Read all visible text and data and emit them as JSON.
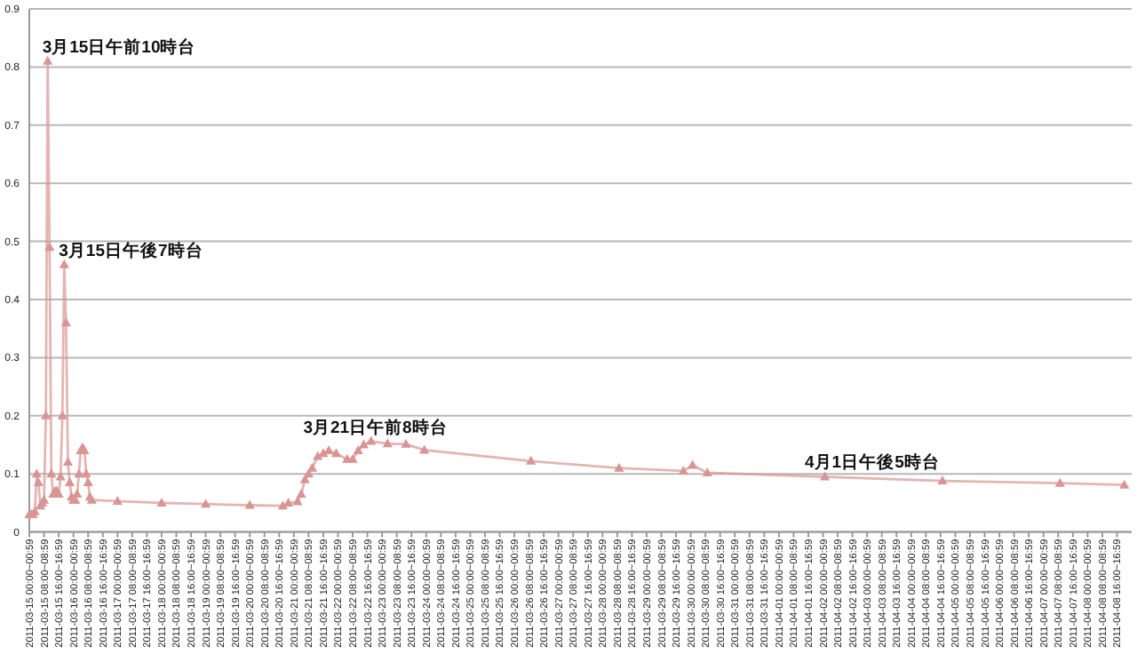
{
  "chart_data": {
    "type": "line",
    "marker": "triangle",
    "line_style": "solid",
    "grid": "y",
    "ylim": [
      0,
      0.9
    ],
    "yticks": [
      0,
      0.1,
      0.2,
      0.3,
      0.4,
      0.5,
      0.6,
      0.7,
      0.8,
      0.9
    ],
    "xlim": [
      "2011-03-15T00:00",
      "2011-04-09T00:00"
    ],
    "xticks": [
      {
        "value": "2011-03-15T00:00",
        "label": "2011-03-15 00:00~00:59"
      },
      {
        "value": "2011-03-15T08:00",
        "label": "2011-03-15 08:00~08:59"
      },
      {
        "value": "2011-03-15T16:00",
        "label": "2011-03-15 16:00~16:59"
      },
      {
        "value": "2011-03-16T00:00",
        "label": "2011-03-16 00:00~00:59"
      },
      {
        "value": "2011-03-16T08:00",
        "label": "2011-03-16 08:00~08:59"
      },
      {
        "value": "2011-03-16T16:00",
        "label": "2011-03-16 16:00~16:59"
      },
      {
        "value": "2011-03-17T00:00",
        "label": "2011-03-17 00:00~00:59"
      },
      {
        "value": "2011-03-17T08:00",
        "label": "2011-03-17 08:00~08:59"
      },
      {
        "value": "2011-03-17T16:00",
        "label": "2011-03-17 16:00~16:59"
      },
      {
        "value": "2011-03-18T00:00",
        "label": "2011-03-18 00:00~00:59"
      },
      {
        "value": "2011-03-18T08:00",
        "label": "2011-03-18 08:00~08:59"
      },
      {
        "value": "2011-03-18T16:00",
        "label": "2011-03-18 16:00~16:59"
      },
      {
        "value": "2011-03-19T00:00",
        "label": "2011-03-19 00:00~00:59"
      },
      {
        "value": "2011-03-19T08:00",
        "label": "2011-03-19 08:00~08:59"
      },
      {
        "value": "2011-03-19T16:00",
        "label": "2011-03-19 16:00~16:59"
      },
      {
        "value": "2011-03-20T00:00",
        "label": "2011-03-20 00:00~00:59"
      },
      {
        "value": "2011-03-20T08:00",
        "label": "2011-03-20 08:00~08:59"
      },
      {
        "value": "2011-03-20T16:00",
        "label": "2011-03-20 16:00~16:59"
      },
      {
        "value": "2011-03-21T00:00",
        "label": "2011-03-21 00:00~00:59"
      },
      {
        "value": "2011-03-21T08:00",
        "label": "2011-03-21 08:00~08:59"
      },
      {
        "value": "2011-03-21T16:00",
        "label": "2011-03-21 16:00~16:59"
      },
      {
        "value": "2011-03-22T00:00",
        "label": "2011-03-22 00:00~00:59"
      },
      {
        "value": "2011-03-22T08:00",
        "label": "2011-03-22 08:00~08:59"
      },
      {
        "value": "2011-03-22T16:00",
        "label": "2011-03-22 16:00~16:59"
      },
      {
        "value": "2011-03-23T00:00",
        "label": "2011-03-23 00:00~00:59"
      },
      {
        "value": "2011-03-23T08:00",
        "label": "2011-03-23 08:00~08:59"
      },
      {
        "value": "2011-03-23T16:00",
        "label": "2011-03-23 16:00~16:59"
      },
      {
        "value": "2011-03-24T00:00",
        "label": "2011-03-24 00:00~00:59"
      },
      {
        "value": "2011-03-24T08:00",
        "label": "2011-03-24 08:00~08:59"
      },
      {
        "value": "2011-03-24T16:00",
        "label": "2011-03-24 16:00~16:59"
      },
      {
        "value": "2011-03-25T00:00",
        "label": "2011-03-25 00:00~00:59"
      },
      {
        "value": "2011-03-25T08:00",
        "label": "2011-03-25 08:00~08:59"
      },
      {
        "value": "2011-03-25T16:00",
        "label": "2011-03-25 16:00~16:59"
      },
      {
        "value": "2011-03-26T00:00",
        "label": "2011-03-26 00:00~00:59"
      },
      {
        "value": "2011-03-26T08:00",
        "label": "2011-03-26 08:00~08:59"
      },
      {
        "value": "2011-03-26T16:00",
        "label": "2011-03-26 16:00~16:59"
      },
      {
        "value": "2011-03-27T00:00",
        "label": "2011-03-27 00:00~00:59"
      },
      {
        "value": "2011-03-27T08:00",
        "label": "2011-03-27 08:00~08:59"
      },
      {
        "value": "2011-03-27T16:00",
        "label": "2011-03-27 16:00~16:59"
      },
      {
        "value": "2011-03-28T00:00",
        "label": "2011-03-28 00:00~00:59"
      },
      {
        "value": "2011-03-28T08:00",
        "label": "2011-03-28 08:00~08:59"
      },
      {
        "value": "2011-03-28T16:00",
        "label": "2011-03-28 16:00~16:59"
      },
      {
        "value": "2011-03-29T00:00",
        "label": "2011-03-29 00:00~00:59"
      },
      {
        "value": "2011-03-29T08:00",
        "label": "2011-03-29 08:00~08:59"
      },
      {
        "value": "2011-03-29T16:00",
        "label": "2011-03-29 16:00~16:59"
      },
      {
        "value": "2011-03-30T00:00",
        "label": "2011-03-30 00:00~00:59"
      },
      {
        "value": "2011-03-30T08:00",
        "label": "2011-03-30 08:00~08:59"
      },
      {
        "value": "2011-03-30T16:00",
        "label": "2011-03-30 16:00~16:59"
      },
      {
        "value": "2011-03-31T00:00",
        "label": "2011-03-31 00:00~00:59"
      },
      {
        "value": "2011-03-31T08:00",
        "label": "2011-03-31 08:00~08:59"
      },
      {
        "value": "2011-03-31T16:00",
        "label": "2011-03-31 16:00~16:59"
      },
      {
        "value": "2011-04-01T00:00",
        "label": "2011-04-01 00:00~00:59"
      },
      {
        "value": "2011-04-01T08:00",
        "label": "2011-04-01 08:00~08:59"
      },
      {
        "value": "2011-04-01T16:00",
        "label": "2011-04-01 16:00~16:59"
      },
      {
        "value": "2011-04-02T00:00",
        "label": "2011-04-02 00:00~00:59"
      },
      {
        "value": "2011-04-02T08:00",
        "label": "2011-04-02 08:00~08:59"
      },
      {
        "value": "2011-04-02T16:00",
        "label": "2011-04-02 16:00~16:59"
      },
      {
        "value": "2011-04-03T00:00",
        "label": "2011-04-03 00:00~00:59"
      },
      {
        "value": "2011-04-03T08:00",
        "label": "2011-04-03 08:00~08:59"
      },
      {
        "value": "2011-04-03T16:00",
        "label": "2011-04-03 16:00~16:59"
      },
      {
        "value": "2011-04-04T00:00",
        "label": "2011-04-04 00:00~00:59"
      },
      {
        "value": "2011-04-04T08:00",
        "label": "2011-04-04 08:00~08:59"
      },
      {
        "value": "2011-04-04T16:00",
        "label": "2011-04-04 16:00~16:59"
      },
      {
        "value": "2011-04-05T00:00",
        "label": "2011-04-05 00:00~00:59"
      },
      {
        "value": "2011-04-05T08:00",
        "label": "2011-04-05 08:00~08:59"
      },
      {
        "value": "2011-04-05T16:00",
        "label": "2011-04-05 16:00~16:59"
      },
      {
        "value": "2011-04-06T00:00",
        "label": "2011-04-06 00:00~00:59"
      },
      {
        "value": "2011-04-06T08:00",
        "label": "2011-04-06 08:00~08:59"
      },
      {
        "value": "2011-04-06T16:00",
        "label": "2011-04-06 16:00~16:59"
      },
      {
        "value": "2011-04-07T00:00",
        "label": "2011-04-07 00:00~00:59"
      },
      {
        "value": "2011-04-07T08:00",
        "label": "2011-04-07 08:00~08:59"
      },
      {
        "value": "2011-04-07T16:00",
        "label": "2011-04-07 16:00~16:59"
      },
      {
        "value": "2011-04-08T00:00",
        "label": "2011-04-08 00:00~00:59"
      },
      {
        "value": "2011-04-08T08:00",
        "label": "2011-04-08 08:00~08:59"
      },
      {
        "value": "2011-04-08T16:00",
        "label": "2011-04-08 16:00~16:59"
      }
    ],
    "series": [
      {
        "color": "#d99594",
        "x": [
          "2011-03-15T00:00",
          "2011-03-15T01:00",
          "2011-03-15T02:00",
          "2011-03-15T03:00",
          "2011-03-15T04:00",
          "2011-03-15T05:00",
          "2011-03-15T06:00",
          "2011-03-15T07:00",
          "2011-03-15T08:00",
          "2011-03-15T09:00",
          "2011-03-15T10:00",
          "2011-03-15T11:00",
          "2011-03-15T12:00",
          "2011-03-15T13:00",
          "2011-03-15T14:00",
          "2011-03-15T15:00",
          "2011-03-15T16:00",
          "2011-03-15T17:00",
          "2011-03-15T18:00",
          "2011-03-15T19:00",
          "2011-03-15T20:00",
          "2011-03-15T21:00",
          "2011-03-15T22:00",
          "2011-03-15T23:00",
          "2011-03-16T00:00",
          "2011-03-16T01:00",
          "2011-03-16T02:00",
          "2011-03-16T03:00",
          "2011-03-16T04:00",
          "2011-03-16T05:00",
          "2011-03-16T06:00",
          "2011-03-16T07:00",
          "2011-03-16T08:00",
          "2011-03-16T09:00",
          "2011-03-16T10:00",
          "2011-03-17T00:00",
          "2011-03-18T00:00",
          "2011-03-19T00:00",
          "2011-03-20T00:00",
          "2011-03-20T18:00",
          "2011-03-20T21:00",
          "2011-03-21T02:00",
          "2011-03-21T04:00",
          "2011-03-21T06:00",
          "2011-03-21T08:00",
          "2011-03-21T10:00",
          "2011-03-21T13:00",
          "2011-03-21T16:00",
          "2011-03-21T19:00",
          "2011-03-21T23:00",
          "2011-03-22T05:00",
          "2011-03-22T08:00",
          "2011-03-22T11:00",
          "2011-03-22T14:00",
          "2011-03-22T18:00",
          "2011-03-23T03:00",
          "2011-03-23T13:00",
          "2011-03-23T23:00",
          "2011-03-26T09:00",
          "2011-03-28T09:00",
          "2011-03-29T20:00",
          "2011-03-30T01:00",
          "2011-03-30T09:00",
          "2011-04-02T01:00",
          "2011-04-04T17:00",
          "2011-04-07T09:00",
          "2011-04-08T20:00"
        ],
        "values": [
          0.03,
          0.03,
          0.03,
          0.035,
          0.1,
          0.085,
          0.045,
          0.05,
          0.055,
          0.2,
          0.81,
          0.49,
          0.1,
          0.065,
          0.07,
          0.07,
          0.065,
          0.095,
          0.2,
          0.46,
          0.36,
          0.12,
          0.085,
          0.06,
          0.055,
          0.055,
          0.065,
          0.1,
          0.14,
          0.145,
          0.14,
          0.1,
          0.085,
          0.06,
          0.055,
          0.053,
          0.05,
          0.048,
          0.046,
          0.045,
          0.05,
          0.052,
          0.065,
          0.09,
          0.1,
          0.11,
          0.13,
          0.135,
          0.14,
          0.135,
          0.125,
          0.125,
          0.14,
          0.15,
          0.156,
          0.152,
          0.151,
          0.141,
          0.122,
          0.11,
          0.105,
          0.115,
          0.102,
          0.095,
          0.088,
          0.084,
          0.081
        ]
      }
    ],
    "annotations": [
      {
        "text": "3月15日午前10時台",
        "x": "2011-03-15T10:00",
        "y": 0.81
      },
      {
        "text": "3月15日午後7時台",
        "x": "2011-03-15T19:00",
        "y": 0.46
      },
      {
        "text": "3月21日午前8時台",
        "x": "2011-03-21T08:00",
        "y": 0.1
      },
      {
        "text": "4月1日午後5時台",
        "x": "2011-04-01T17:00",
        "y": 0.096
      }
    ]
  }
}
